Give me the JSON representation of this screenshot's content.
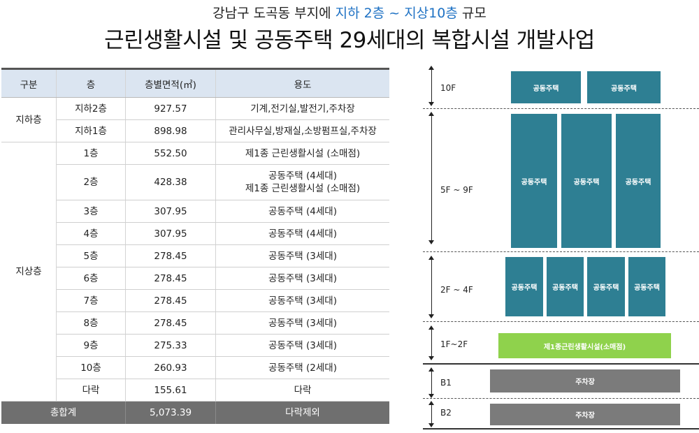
{
  "title": {
    "line1_pre": "강남구 도곡동 부지에 ",
    "line1_highlight": "지하 2층 ~ 지상10층",
    "line1_post": " 규모",
    "line2": "근린생활시설 및 공동주택 29세대의 복합시설 개발사업"
  },
  "table": {
    "headers": [
      "구분",
      "층",
      "층별면적(㎡)",
      "용도"
    ],
    "groups": {
      "basement": "지하층",
      "above": "지상층"
    },
    "rows": [
      {
        "floor": "지하2층",
        "area": "927.57",
        "use": "기계,전기실,발전기,주차장"
      },
      {
        "floor": "지하1층",
        "area": "898.98",
        "use": "관리사무실,방재실,소방펌프실,주차장"
      },
      {
        "floor": "1층",
        "area": "552.50",
        "use": "제1종 근린생활시설 (소매점)"
      },
      {
        "floor": "2층",
        "area": "428.38",
        "use": "공동주택 (4세대)",
        "use2": "제1종 근린생활시설 (소매점)"
      },
      {
        "floor": "3층",
        "area": "307.95",
        "use": "공동주택 (4세대)"
      },
      {
        "floor": "4층",
        "area": "307.95",
        "use": "공동주택 (4세대)"
      },
      {
        "floor": "5층",
        "area": "278.45",
        "use": "공동주택 (3세대)"
      },
      {
        "floor": "6층",
        "area": "278.45",
        "use": "공동주택 (3세대)"
      },
      {
        "floor": "7층",
        "area": "278.45",
        "use": "공동주택 (3세대)"
      },
      {
        "floor": "8층",
        "area": "278.45",
        "use": "공동주택 (3세대)"
      },
      {
        "floor": "9층",
        "area": "275.33",
        "use": "공동주택 (3세대)"
      },
      {
        "floor": "10층",
        "area": "260.93",
        "use": "공동주택 (2세대)"
      },
      {
        "floor": "다락",
        "area": "155.61",
        "use": "다락"
      }
    ],
    "total": {
      "label": "총합계",
      "area": "5,073.39",
      "use": "다락제외"
    }
  },
  "diagram": {
    "levels": {
      "f10": "10F",
      "f5_9": "5F ~ 9F",
      "f2_4": "2F ~ 4F",
      "f1_2": "1F~2F",
      "b1": "B1",
      "b2": "B2"
    },
    "housing": "공동주택",
    "retail": "제1종근린생활시설(소매점)",
    "parking": "주차장",
    "colors": {
      "housing": "#2e7f93",
      "retail": "#8fd24c",
      "parking": "#7b7b7b"
    }
  }
}
